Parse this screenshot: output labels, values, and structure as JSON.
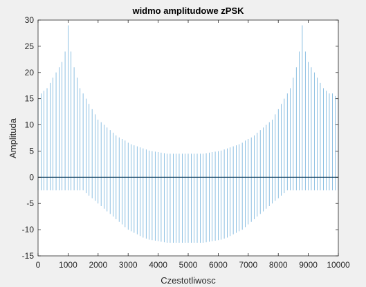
{
  "chart_data": {
    "type": "line",
    "title": "widmo amplitudowe zPSK",
    "xlabel": "Czestotliwosc",
    "ylabel": "Amplituda",
    "xlim": [
      0,
      10000
    ],
    "ylim": [
      -15,
      30
    ],
    "xticks": [
      "0",
      "1000",
      "2000",
      "3000",
      "4000",
      "5000",
      "6000",
      "7000",
      "8000",
      "9000",
      "10000"
    ],
    "yticks": [
      "-15",
      "-10",
      "-5",
      "0",
      "5",
      "10",
      "15",
      "20",
      "25",
      "30"
    ],
    "grid": false,
    "color": "#0072bd",
    "series": [
      {
        "style": "stem",
        "x": [
          0,
          100,
          200,
          300,
          400,
          500,
          600,
          700,
          800,
          900,
          1000,
          1100,
          1200,
          1300,
          1400,
          1500,
          1600,
          1700,
          1800,
          1900,
          2000,
          2100,
          2200,
          2300,
          2400,
          2500,
          2600,
          2700,
          2800,
          2900,
          3000,
          3100,
          3200,
          3300,
          3400,
          3500,
          3600,
          3700,
          3800,
          3900,
          4000,
          4100,
          4200,
          4300,
          4400,
          4500,
          4600,
          4700,
          4800,
          4900,
          5000,
          5100,
          5200,
          5300,
          5400,
          5500,
          5600,
          5700,
          5800,
          5900,
          6000,
          6100,
          6200,
          6300,
          6400,
          6500,
          6600,
          6700,
          6800,
          6900,
          7000,
          7100,
          7200,
          7300,
          7400,
          7500,
          7600,
          7700,
          7800,
          7900,
          8000,
          8100,
          8200,
          8300,
          8400,
          8500,
          8600,
          8700,
          8800,
          8900,
          9000,
          9100,
          9200,
          9300,
          9400,
          9500,
          9600,
          9700,
          9800,
          9900,
          10000
        ],
        "y_max": [
          15,
          16,
          16.5,
          17,
          18,
          19,
          20,
          21,
          22,
          24,
          29,
          24,
          21,
          19,
          17,
          16,
          15,
          14,
          13,
          12,
          11,
          10.5,
          10,
          9.5,
          9,
          8.5,
          8,
          7.6,
          7.3,
          7,
          6.6,
          6.3,
          6.1,
          5.9,
          5.7,
          5.5,
          5.3,
          5.1,
          5,
          4.9,
          4.8,
          4.7,
          4.6,
          4.5,
          4.5,
          4.5,
          4.5,
          4.5,
          4.5,
          4.5,
          4.5,
          4.5,
          4.5,
          4.5,
          4.5,
          4.5,
          4.6,
          4.7,
          4.8,
          4.9,
          5,
          5.1,
          5.3,
          5.5,
          5.7,
          5.9,
          6.1,
          6.3,
          6.6,
          7,
          7.3,
          7.6,
          8,
          8.5,
          9,
          9.5,
          10,
          10.5,
          11,
          12,
          13,
          14,
          15,
          16,
          17,
          19,
          21,
          24,
          29,
          24,
          22,
          21,
          20,
          19,
          18,
          17,
          16.5,
          16,
          16,
          15.5,
          15
        ],
        "y_min": [
          -2.5,
          -2.5,
          -2.5,
          -2.5,
          -2.5,
          -2.5,
          -2.5,
          -2.5,
          -2.5,
          -2.5,
          -2.5,
          -2.5,
          -2.5,
          -2.5,
          -2.5,
          -2.5,
          -3,
          -3.5,
          -4,
          -4.5,
          -5,
          -5.5,
          -6,
          -6.5,
          -7,
          -7.5,
          -8,
          -8.5,
          -9,
          -9.5,
          -10,
          -10.3,
          -10.6,
          -10.9,
          -11.2,
          -11.5,
          -11.7,
          -11.9,
          -12,
          -12.1,
          -12.2,
          -12.3,
          -12.4,
          -12.5,
          -12.5,
          -12.5,
          -12.5,
          -12.5,
          -12.5,
          -12.5,
          -12.5,
          -12.5,
          -12.5,
          -12.5,
          -12.5,
          -12.5,
          -12.4,
          -12.3,
          -12.2,
          -12.1,
          -12,
          -11.9,
          -11.7,
          -11.5,
          -11.2,
          -10.9,
          -10.6,
          -10.3,
          -10,
          -9.5,
          -9,
          -8.5,
          -8,
          -7.5,
          -7,
          -6.5,
          -6,
          -5.5,
          -5,
          -4.5,
          -4,
          -3.5,
          -3,
          -2.5,
          -2.5,
          -2.5,
          -2.5,
          -2.5,
          -2.5,
          -2.5,
          -2.5,
          -2.5,
          -2.5,
          -2.5,
          -2.5,
          -2.5,
          -2.5,
          -2.5,
          -2.5,
          -2.5,
          -2.5
        ]
      }
    ]
  }
}
